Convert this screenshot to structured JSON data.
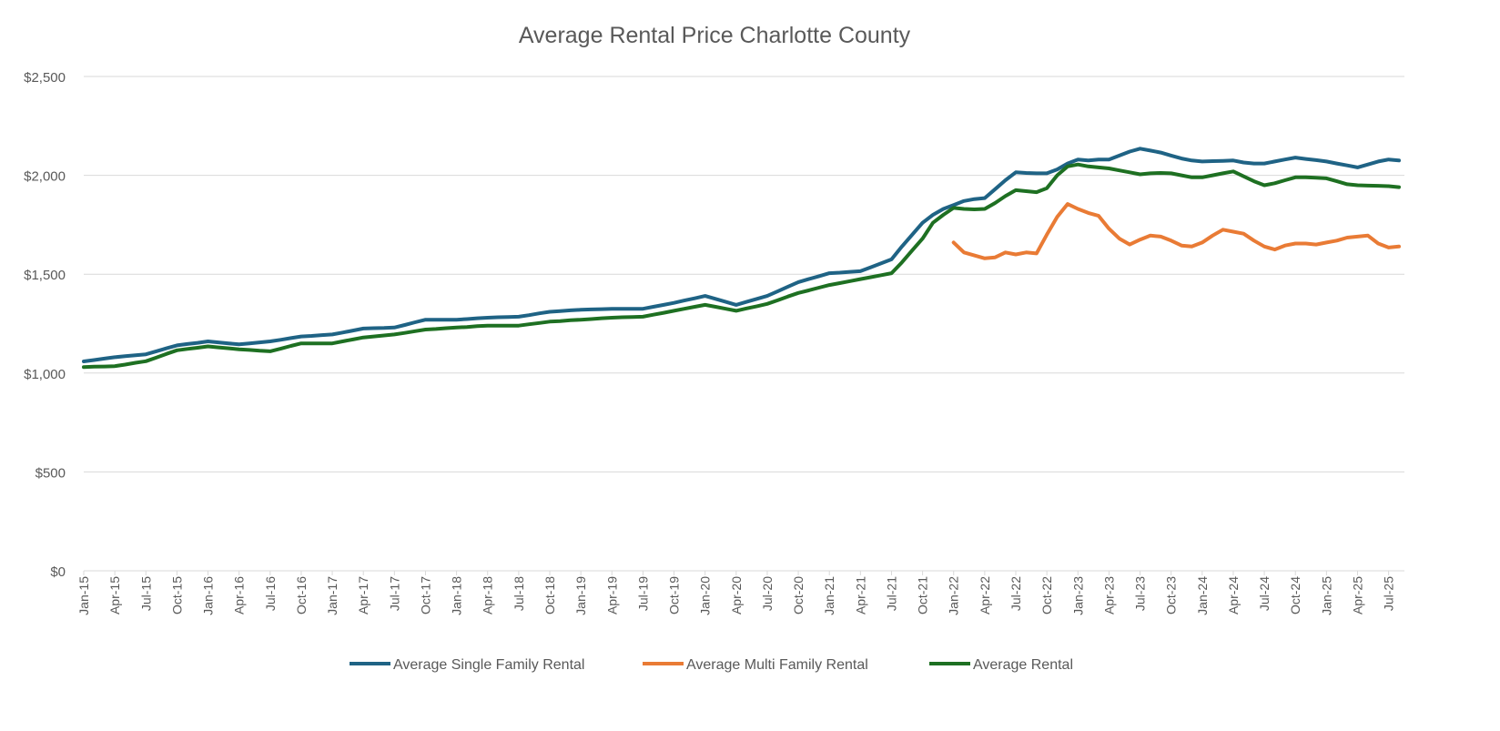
{
  "chart_data": {
    "type": "line",
    "title": "Average Rental Price Charlotte County",
    "xlabel": "",
    "ylabel": "",
    "ylim": [
      0,
      2500
    ],
    "y_ticks": [
      0,
      500,
      1000,
      1500,
      2000,
      2500
    ],
    "y_tick_labels": [
      "$0",
      "$500",
      "$1,000",
      "$1,500",
      "$2,000",
      "$2,500"
    ],
    "grid": true,
    "legend_position": "bottom",
    "x_tick_labels": [
      "Jan-15",
      "Apr-15",
      "Jul-15",
      "Oct-15",
      "Jan-16",
      "Apr-16",
      "Jul-16",
      "Oct-16",
      "Jan-17",
      "Apr-17",
      "Jul-17",
      "Oct-17",
      "Jan-18",
      "Apr-18",
      "Jul-18",
      "Oct-18",
      "Jan-19",
      "Apr-19",
      "Jul-19",
      "Oct-19",
      "Jan-20",
      "Apr-20",
      "Jul-20",
      "Oct-20",
      "Jan-21",
      "Apr-21",
      "Jul-21",
      "Oct-21",
      "Jan-22",
      "Apr-22",
      "Jul-22",
      "Oct-22",
      "Jan-23",
      "Apr-23",
      "Jul-23",
      "Oct-23",
      "Jan-24",
      "Apr-24",
      "Jul-24",
      "Oct-24",
      "Jan-25",
      "Apr-25",
      "Jul-25"
    ],
    "x_range": [
      "Jan-15",
      "Aug-25"
    ],
    "series": [
      {
        "name": "Average Single Family Rental",
        "color": "#1f6385",
        "start": "Jan-15",
        "values": [
          1059,
          1066,
          1073,
          1080,
          1085,
          1090,
          1095,
          1110,
          1125,
          1140,
          1147,
          1153,
          1160,
          1155,
          1150,
          1145,
          1150,
          1155,
          1160,
          1168,
          1177,
          1185,
          1188,
          1192,
          1195,
          1205,
          1215,
          1225,
          1227,
          1228,
          1230,
          1243,
          1257,
          1270,
          1270,
          1270,
          1270,
          1273,
          1277,
          1280,
          1282,
          1283,
          1285,
          1293,
          1302,
          1310,
          1313,
          1317,
          1320,
          1322,
          1323,
          1325,
          1325,
          1325,
          1325,
          1335,
          1345,
          1355,
          1367,
          1378,
          1390,
          1375,
          1360,
          1345,
          1360,
          1375,
          1390,
          1413,
          1437,
          1460,
          1475,
          1490,
          1505,
          1508,
          1512,
          1515,
          1535,
          1555,
          1575,
          1640,
          1700,
          1760,
          1800,
          1830,
          1850,
          1870,
          1880,
          1885,
          1930,
          1975,
          2015,
          2012,
          2010,
          2010,
          2030,
          2060,
          2080,
          2075,
          2080,
          2080,
          2100,
          2120,
          2135,
          2125,
          2115,
          2100,
          2085,
          2075,
          2070,
          2072,
          2073,
          2075,
          2065,
          2060,
          2060,
          2070,
          2080,
          2090,
          2083,
          2077,
          2070,
          2060,
          2050,
          2040,
          2055,
          2070,
          2080,
          2075
        ]
      },
      {
        "name": "Average Multi Family Rental",
        "color": "#e97b35",
        "start": "Jan-22",
        "values": [
          1660,
          1610,
          1595,
          1580,
          1585,
          1610,
          1600,
          1610,
          1605,
          1700,
          1790,
          1855,
          1830,
          1810,
          1795,
          1730,
          1680,
          1650,
          1675,
          1695,
          1690,
          1670,
          1645,
          1640,
          1660,
          1695,
          1725,
          1715,
          1705,
          1670,
          1640,
          1625,
          1645,
          1655,
          1655,
          1650,
          1660,
          1670,
          1685,
          1690,
          1695,
          1655,
          1635,
          1640
        ]
      },
      {
        "name": "Average Rental",
        "color": "#1e7022",
        "start": "Jan-15",
        "values": [
          1030,
          1032,
          1033,
          1035,
          1043,
          1052,
          1060,
          1078,
          1097,
          1115,
          1122,
          1128,
          1135,
          1130,
          1125,
          1120,
          1117,
          1113,
          1110,
          1123,
          1137,
          1150,
          1150,
          1150,
          1150,
          1160,
          1170,
          1180,
          1185,
          1190,
          1195,
          1203,
          1212,
          1220,
          1223,
          1227,
          1230,
          1233,
          1237,
          1240,
          1240,
          1240,
          1240,
          1247,
          1253,
          1260,
          1263,
          1267,
          1270,
          1273,
          1277,
          1280,
          1282,
          1283,
          1285,
          1295,
          1305,
          1315,
          1325,
          1335,
          1345,
          1335,
          1325,
          1315,
          1327,
          1338,
          1350,
          1368,
          1387,
          1405,
          1418,
          1432,
          1445,
          1455,
          1465,
          1475,
          1485,
          1495,
          1505,
          1560,
          1620,
          1680,
          1760,
          1800,
          1835,
          1830,
          1828,
          1830,
          1860,
          1895,
          1925,
          1920,
          1915,
          1935,
          2000,
          2045,
          2055,
          2045,
          2040,
          2035,
          2025,
          2015,
          2005,
          2010,
          2012,
          2010,
          2000,
          1990,
          1990,
          2000,
          2010,
          2020,
          1995,
          1970,
          1950,
          1960,
          1975,
          1990,
          1990,
          1988,
          1985,
          1970,
          1955,
          1950,
          1948,
          1947,
          1945,
          1940
        ]
      }
    ]
  }
}
